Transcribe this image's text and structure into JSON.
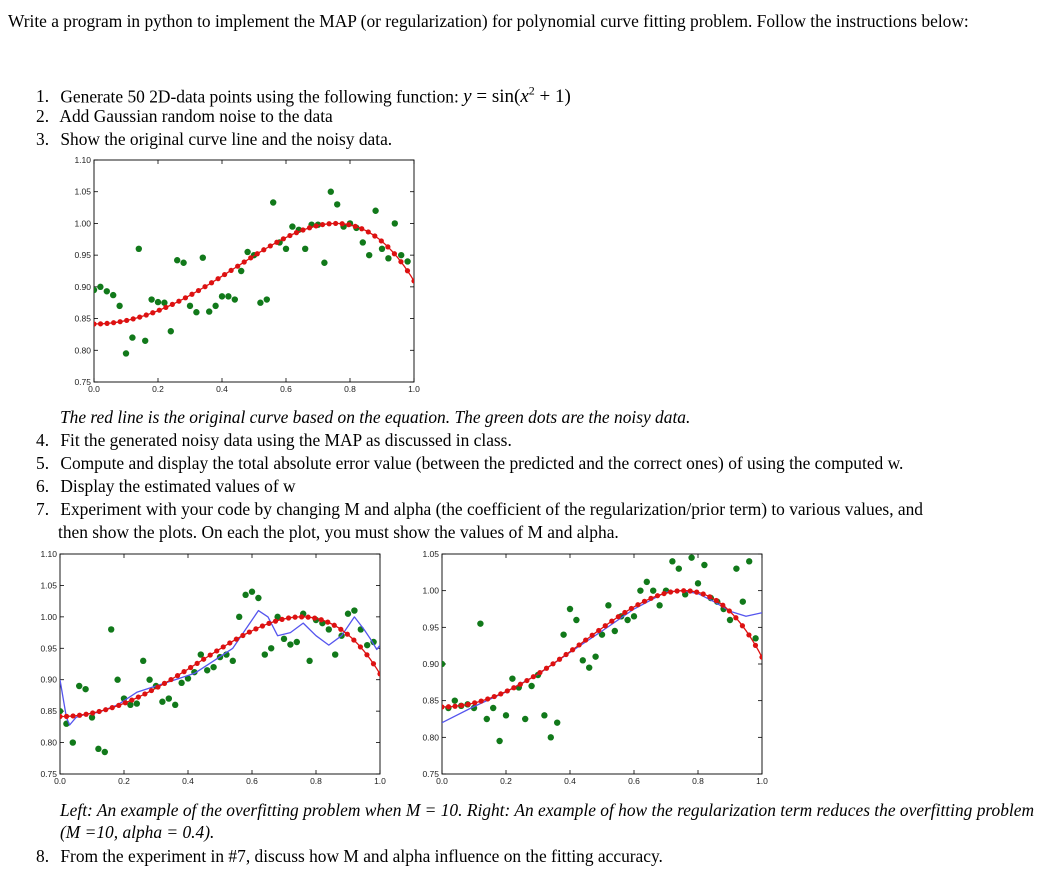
{
  "intro": "Write a program in python to implement the MAP (or regularization) for polynomial curve fitting problem. Follow the instructions below:",
  "items": [
    {
      "num": "1.",
      "text": "Generate 50 2D-data points using the following function: "
    },
    {
      "num": "2.",
      "text": "Add Gaussian random noise to the data"
    },
    {
      "num": "3.",
      "text": "Show the original curve line and the noisy data."
    },
    {
      "num": "4.",
      "text": "Fit the generated noisy data using the MAP as discussed in class."
    },
    {
      "num": "5.",
      "text": "Compute and display the total absolute error value (between the predicted and the correct ones) of using the computed w."
    },
    {
      "num": "6.",
      "text": "Display the estimated values of w"
    },
    {
      "num": "7.",
      "text": "Experiment with your code by changing M and alpha (the coefficient of the regularization/prior term) to various values, and",
      "text2": "then show the plots. On each the plot, you must show the values of M and alpha."
    },
    {
      "num": "8.",
      "text": "From the experiment in #7, discuss how M and alpha influence on the fitting accuracy."
    }
  ],
  "equation": {
    "lhs": "y",
    "eq": " = ",
    "fn": "sin",
    "open": "(",
    "var": "x",
    "exp": "2",
    "rest": " + 1)"
  },
  "caption1": "The red line is the original curve based on the equation. The green dots are the noisy data.",
  "caption2": "Left: An example of the overfitting problem when M = 10. Right: An example of how the regularization term reduces the overfitting problem (M =10, alpha = 0.4).",
  "colors": {
    "original": "#dd1111",
    "noisy": "#11791a",
    "fit": "#5555ee"
  },
  "chart_data": [
    {
      "type": "scatter",
      "title": "",
      "xlabel": "",
      "ylabel": "",
      "xlim": [
        0.0,
        1.0
      ],
      "ylim": [
        0.75,
        1.1
      ],
      "xticks": [
        "0.0",
        "0.2",
        "0.4",
        "0.6",
        "0.8",
        "1.0"
      ],
      "yticks": [
        "0.75",
        "0.80",
        "0.85",
        "0.90",
        "0.95",
        "1.00",
        "1.05",
        "1.10"
      ],
      "series": [
        {
          "name": "original curve",
          "kind": "line+markers",
          "color": "red"
        },
        {
          "name": "noisy data",
          "kind": "markers",
          "color": "green",
          "x": [
            0.0,
            0.02,
            0.04,
            0.06,
            0.08,
            0.1,
            0.12,
            0.14,
            0.16,
            0.18,
            0.2,
            0.22,
            0.24,
            0.26,
            0.28,
            0.3,
            0.32,
            0.34,
            0.36,
            0.38,
            0.4,
            0.42,
            0.44,
            0.46,
            0.48,
            0.5,
            0.52,
            0.54,
            0.56,
            0.58,
            0.6,
            0.62,
            0.64,
            0.66,
            0.68,
            0.7,
            0.72,
            0.74,
            0.76,
            0.78,
            0.8,
            0.82,
            0.84,
            0.86,
            0.88,
            0.9,
            0.92,
            0.94,
            0.96,
            0.98
          ],
          "y": [
            0.895,
            0.9,
            0.893,
            0.887,
            0.87,
            0.795,
            0.82,
            0.96,
            0.815,
            0.88,
            0.876,
            0.875,
            0.83,
            0.942,
            0.938,
            0.87,
            0.86,
            0.946,
            0.861,
            0.87,
            0.885,
            0.885,
            0.88,
            0.925,
            0.955,
            0.95,
            0.875,
            0.88,
            1.033,
            0.97,
            0.96,
            0.995,
            0.99,
            0.96,
            0.998,
            0.998,
            0.938,
            1.05,
            1.03,
            0.995,
            1.0,
            0.993,
            0.97,
            0.95,
            1.02,
            0.96,
            0.945,
            1.0,
            0.95,
            0.94
          ]
        }
      ]
    },
    {
      "type": "scatter",
      "title": "",
      "xlim": [
        0.0,
        1.0
      ],
      "ylim": [
        0.75,
        1.1
      ],
      "xticks": [
        "0.0",
        "0.2",
        "0.4",
        "0.6",
        "0.8",
        "1.0"
      ],
      "yticks": [
        "0.75",
        "0.80",
        "0.85",
        "0.90",
        "0.95",
        "1.00",
        "1.05",
        "1.10"
      ],
      "series": [
        {
          "name": "original curve",
          "kind": "line+markers",
          "color": "red"
        },
        {
          "name": "fit (M=10)",
          "kind": "line",
          "color": "blue",
          "x": [
            0.0,
            0.01,
            0.02,
            0.03,
            0.05,
            0.08,
            0.12,
            0.18,
            0.24,
            0.3,
            0.36,
            0.42,
            0.48,
            0.54,
            0.58,
            0.62,
            0.65,
            0.68,
            0.72,
            0.76,
            0.8,
            0.84,
            0.88,
            0.92,
            0.95,
            0.97,
            0.99,
            1.0
          ],
          "y": [
            0.9,
            0.87,
            0.84,
            0.828,
            0.84,
            0.845,
            0.848,
            0.86,
            0.88,
            0.89,
            0.9,
            0.91,
            0.93,
            0.95,
            0.98,
            1.01,
            1.0,
            0.97,
            0.975,
            0.99,
            0.97,
            0.955,
            0.97,
            1.0,
            0.98,
            0.965,
            0.948,
            0.955
          ]
        },
        {
          "name": "noisy data",
          "kind": "markers",
          "color": "green",
          "x": [
            0.0,
            0.02,
            0.04,
            0.06,
            0.08,
            0.1,
            0.12,
            0.14,
            0.16,
            0.18,
            0.2,
            0.22,
            0.24,
            0.26,
            0.28,
            0.3,
            0.32,
            0.34,
            0.36,
            0.38,
            0.4,
            0.42,
            0.44,
            0.46,
            0.48,
            0.5,
            0.52,
            0.54,
            0.56,
            0.58,
            0.6,
            0.62,
            0.64,
            0.66,
            0.68,
            0.7,
            0.72,
            0.74,
            0.76,
            0.78,
            0.8,
            0.82,
            0.84,
            0.86,
            0.88,
            0.9,
            0.92,
            0.94,
            0.96,
            0.98
          ],
          "y": [
            0.85,
            0.83,
            0.8,
            0.89,
            0.885,
            0.84,
            0.79,
            0.785,
            0.98,
            0.9,
            0.87,
            0.86,
            0.862,
            0.93,
            0.9,
            0.89,
            0.865,
            0.87,
            0.86,
            0.895,
            0.902,
            0.912,
            0.94,
            0.915,
            0.92,
            0.936,
            0.94,
            0.93,
            1.0,
            1.035,
            1.04,
            1.03,
            0.94,
            0.95,
            1.0,
            0.965,
            0.956,
            0.96,
            1.005,
            0.93,
            0.995,
            0.99,
            0.98,
            0.94,
            0.97,
            1.005,
            1.01,
            0.98,
            0.955,
            0.96
          ]
        }
      ]
    },
    {
      "type": "scatter",
      "title": "",
      "xlim": [
        0.0,
        1.0
      ],
      "ylim": [
        0.75,
        1.05
      ],
      "xticks": [
        "0.0",
        "0.2",
        "0.4",
        "0.6",
        "0.8",
        "1.0"
      ],
      "yticks": [
        "0.75",
        "0.80",
        "0.85",
        "0.90",
        "0.95",
        "1.00",
        "1.05"
      ],
      "series": [
        {
          "name": "original curve",
          "kind": "line+markers",
          "color": "red"
        },
        {
          "name": "fit (M=10, alpha=0.4)",
          "kind": "line",
          "color": "blue",
          "x": [
            0.0,
            0.1,
            0.2,
            0.3,
            0.4,
            0.5,
            0.6,
            0.7,
            0.75,
            0.8,
            0.85,
            0.9,
            0.95,
            1.0
          ],
          "y": [
            0.82,
            0.842,
            0.862,
            0.886,
            0.916,
            0.945,
            0.975,
            0.998,
            1.0,
            0.996,
            0.985,
            0.972,
            0.965,
            0.97
          ]
        },
        {
          "name": "noisy data",
          "kind": "markers",
          "color": "green",
          "x": [
            0.0,
            0.02,
            0.04,
            0.06,
            0.08,
            0.1,
            0.12,
            0.14,
            0.16,
            0.18,
            0.2,
            0.22,
            0.24,
            0.26,
            0.28,
            0.3,
            0.32,
            0.34,
            0.36,
            0.38,
            0.4,
            0.42,
            0.44,
            0.46,
            0.48,
            0.5,
            0.52,
            0.54,
            0.56,
            0.58,
            0.6,
            0.62,
            0.64,
            0.66,
            0.68,
            0.7,
            0.72,
            0.74,
            0.76,
            0.78,
            0.8,
            0.82,
            0.84,
            0.86,
            0.88,
            0.9,
            0.92,
            0.94,
            0.96,
            0.98
          ],
          "y": [
            0.9,
            0.84,
            0.85,
            0.843,
            0.845,
            0.84,
            0.955,
            0.825,
            0.84,
            0.795,
            0.83,
            0.88,
            0.868,
            0.825,
            0.87,
            0.885,
            0.83,
            0.8,
            0.82,
            0.94,
            0.975,
            0.96,
            0.905,
            0.895,
            0.91,
            0.94,
            0.98,
            0.945,
            0.965,
            0.96,
            0.965,
            1.0,
            1.012,
            1.0,
            0.98,
            1.0,
            1.04,
            1.03,
            0.995,
            1.045,
            1.01,
            1.035,
            0.99,
            0.985,
            0.975,
            0.96,
            1.03,
            0.985,
            1.04,
            0.935
          ]
        }
      ]
    }
  ]
}
